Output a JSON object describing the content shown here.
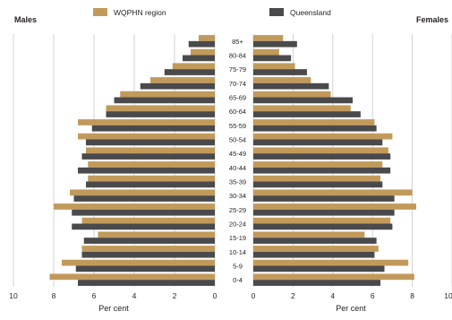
{
  "chart_data": {
    "type": "bar",
    "orientation": "population-pyramid",
    "left_panel_label": "Males",
    "right_panel_label": "Females",
    "xlabel": "Per cent",
    "x_ticks_left": [
      "10",
      "8",
      "6",
      "4",
      "2",
      "0"
    ],
    "x_ticks_right": [
      "0",
      "2",
      "4",
      "6",
      "8",
      "10"
    ],
    "xlim": [
      0,
      10
    ],
    "grid": true,
    "legend_placement": "top",
    "categories": [
      "85+",
      "80-84",
      "75-79",
      "70-74",
      "65-69",
      "60-64",
      "55-59",
      "50-54",
      "45-49",
      "40-44",
      "35-39",
      "30-34",
      "25-29",
      "20-24",
      "15-19",
      "10-14",
      "5-9",
      "0-4"
    ],
    "series": [
      {
        "name": "WQPHN region",
        "color": "#c19a5b",
        "males": [
          0.8,
          1.2,
          2.1,
          3.2,
          4.7,
          5.4,
          6.8,
          6.8,
          6.4,
          6.3,
          6.3,
          7.2,
          8.0,
          6.6,
          5.8,
          6.6,
          7.6,
          8.2
        ],
        "females": [
          1.5,
          1.3,
          2.1,
          2.9,
          3.9,
          4.9,
          6.1,
          7.0,
          6.8,
          6.5,
          6.4,
          8.0,
          8.2,
          6.9,
          5.6,
          6.3,
          7.8,
          8.1
        ]
      },
      {
        "name": "Queensland",
        "color": "#4a4a4c",
        "males": [
          1.3,
          1.6,
          2.5,
          3.7,
          5.0,
          5.4,
          6.1,
          6.4,
          6.6,
          6.8,
          6.4,
          7.0,
          7.1,
          7.1,
          6.5,
          6.6,
          6.9,
          6.8
        ],
        "females": [
          2.2,
          1.9,
          2.7,
          3.8,
          5.0,
          5.4,
          6.2,
          6.5,
          6.9,
          6.9,
          6.5,
          7.1,
          7.1,
          7.0,
          6.2,
          6.1,
          6.6,
          6.4
        ]
      }
    ]
  }
}
